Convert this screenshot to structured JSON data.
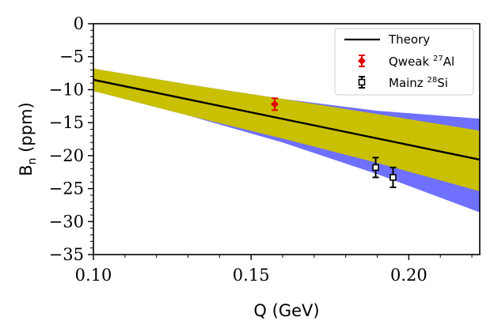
{
  "chart_data": {
    "type": "line",
    "title": "",
    "xlabel": "Q (GeV)",
    "ylabel_main": "B",
    "ylabel_sub": "n",
    "ylabel_unit": " (ppm)",
    "xlim": [
      0.1,
      0.2225
    ],
    "ylim": [
      -35,
      0
    ],
    "xticks": [
      0.1,
      0.15,
      0.2
    ],
    "xtick_labels": [
      "0.10",
      "0.15",
      "0.20"
    ],
    "yticks": [
      0,
      -5,
      -10,
      -15,
      -20,
      -25,
      -30,
      -35
    ],
    "ytick_labels": [
      "0",
      "−5",
      "−10",
      "−15",
      "−20",
      "−25",
      "−30",
      "−35"
    ],
    "series": [
      {
        "name": "Theory",
        "kind": "line",
        "color": "#000000",
        "x": [
          0.1,
          0.2225
        ],
        "y": [
          -8.5,
          -20.6
        ]
      },
      {
        "name": "Qweak 27Al",
        "legend_main": "Qweak ",
        "legend_sup": "27",
        "legend_tail": "Al",
        "kind": "errorbar",
        "marker": "diamond",
        "color": "#e00000",
        "x": [
          0.1575
        ],
        "y": [
          -12.2
        ],
        "err": [
          0.9
        ]
      },
      {
        "name": "Mainz 28Si",
        "legend_main": "Mainz ",
        "legend_sup": "28",
        "legend_tail": "Si",
        "kind": "errorbar",
        "marker": "square-open",
        "color": "#000000",
        "x": [
          0.1895,
          0.195
        ],
        "y": [
          -21.8,
          -23.3
        ],
        "err": [
          1.5,
          1.5
        ]
      }
    ],
    "bands": [
      {
        "name": "outer-band",
        "color": "#7070ff",
        "x": [
          0.1,
          0.13,
          0.16,
          0.19,
          0.2225
        ],
        "upper": [
          -6.8,
          -9.2,
          -11.4,
          -13.2,
          -14.4
        ],
        "lower": [
          -10.2,
          -13.9,
          -18.0,
          -22.8,
          -28.6
        ]
      },
      {
        "name": "inner-band",
        "color": "#c8c000",
        "x": [
          0.1,
          0.13,
          0.16,
          0.19,
          0.2225
        ],
        "upper": [
          -6.8,
          -9.2,
          -11.4,
          -13.7,
          -16.2
        ],
        "lower": [
          -10.2,
          -13.9,
          -17.4,
          -21.1,
          -25.4
        ]
      }
    ],
    "legend": {
      "position": "top-right",
      "entries": [
        "Theory",
        "Qweak 27Al",
        "Mainz 28Si"
      ],
      "theory_label": "Theory"
    }
  }
}
